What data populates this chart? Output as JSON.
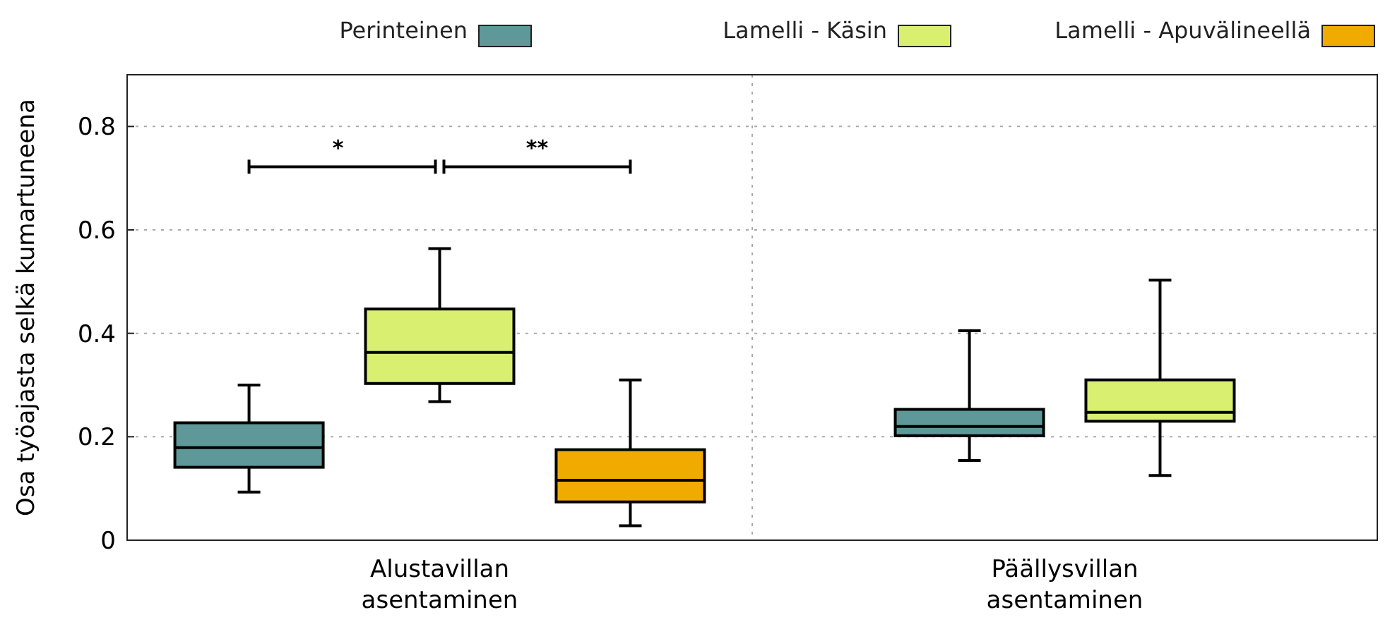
{
  "chart_data": {
    "type": "box",
    "categories": [
      "Alustavillan asentaminen",
      "Päällysvillan asentaminen"
    ],
    "ylabel": "Osa työajasta selkä kumartuneena",
    "ylim": [
      0,
      0.9
    ],
    "yticks": [
      0,
      0.2,
      0.4,
      0.6,
      0.8
    ],
    "grid": true,
    "legend": "top",
    "annotations": [
      "*",
      "**"
    ],
    "series": [
      {
        "name": "Perinteinen",
        "color": "#5f9898",
        "boxes": [
          {
            "low": 0.093,
            "q1": 0.141,
            "median": 0.179,
            "q3": 0.227,
            "high": 0.3
          },
          {
            "low": 0.154,
            "q1": 0.202,
            "median": 0.22,
            "q3": 0.253,
            "high": 0.405
          }
        ]
      },
      {
        "name": "Lamelli - Käsin",
        "color": "#d8ef70",
        "boxes": [
          {
            "low": 0.268,
            "q1": 0.303,
            "median": 0.363,
            "q3": 0.447,
            "high": 0.564
          },
          {
            "low": 0.125,
            "q1": 0.23,
            "median": 0.247,
            "q3": 0.31,
            "high": 0.503
          }
        ]
      },
      {
        "name": "Lamelli - Apuvälineellä",
        "color": "#f0aa00",
        "boxes": [
          {
            "low": 0.028,
            "q1": 0.074,
            "median": 0.116,
            "q3": 0.175,
            "high": 0.31
          },
          null
        ]
      }
    ]
  }
}
